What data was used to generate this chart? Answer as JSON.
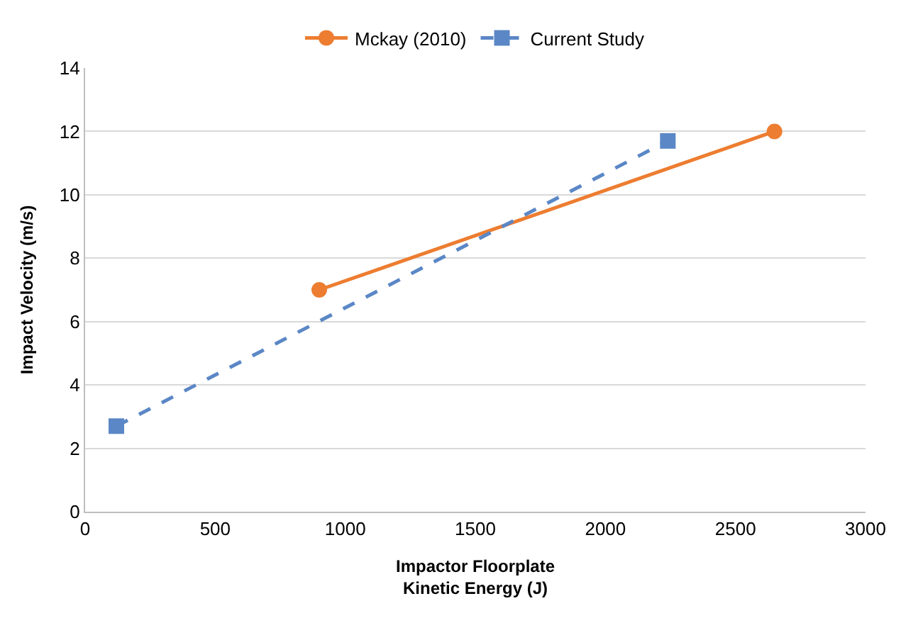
{
  "chart_data": {
    "type": "line",
    "xlabel": "Impactor Floorplate\nKinetic Energy (J)",
    "ylabel": "Impact Velocity (m/s)",
    "series": [
      {
        "name": "Mckay (2010)",
        "color": "#ed7d31",
        "x": [
          900,
          2650
        ],
        "values": [
          7,
          12
        ],
        "marker": "circle",
        "line_style": "solid"
      },
      {
        "name": "Current Study",
        "color": "#5b87c6",
        "x": [
          120,
          2240
        ],
        "values": [
          2.7,
          11.7
        ],
        "marker": "square",
        "line_style": "dashed"
      }
    ],
    "xlim": [
      0,
      3000
    ],
    "xticks": [
      0,
      500,
      1000,
      1500,
      2000,
      2500,
      3000
    ],
    "ylim": [
      0,
      14
    ],
    "yticks": [
      0,
      2,
      4,
      6,
      8,
      10,
      12,
      14
    ],
    "grid": "y",
    "legend": "top"
  }
}
